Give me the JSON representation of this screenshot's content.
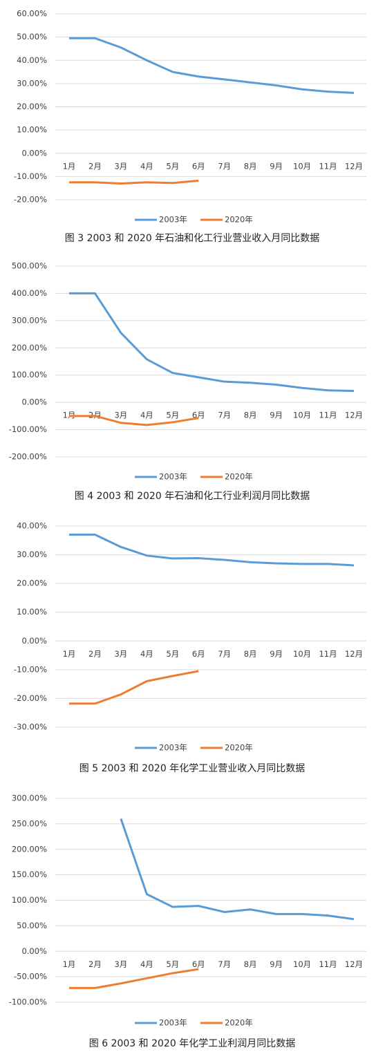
{
  "chart_data": [
    {
      "type": "line",
      "title": "图 3  2003 和 2020 年石油和化工行业营业收入月同比数据",
      "categories": [
        "1月",
        "2月",
        "3月",
        "4月",
        "5月",
        "6月",
        "7月",
        "8月",
        "9月",
        "10月",
        "11月",
        "12月"
      ],
      "series": [
        {
          "name": "2003年",
          "color": "#5b9bd5",
          "values": [
            49.5,
            49.5,
            45.5,
            40,
            35,
            33,
            31.8,
            30.5,
            29.2,
            27.5,
            26.5,
            26
          ]
        },
        {
          "name": "2020年",
          "color": "#ed7d31",
          "values": [
            -12.5,
            -12.5,
            -13,
            -12.5,
            -12.8,
            -11.8,
            null,
            null,
            null,
            null,
            null,
            null
          ]
        }
      ],
      "ylim": [
        -20,
        60
      ],
      "yticks": [
        {
          "value": -20,
          "label": "-20.00%"
        },
        {
          "value": -10,
          "label": "-10.00%"
        },
        {
          "value": 0,
          "label": "0.00%"
        },
        {
          "value": 10,
          "label": "10.00%"
        },
        {
          "value": 20,
          "label": "20.00%"
        },
        {
          "value": 30,
          "label": "30.00%"
        },
        {
          "value": 40,
          "label": "40.00%"
        },
        {
          "value": 50,
          "label": "50.00%"
        },
        {
          "value": 60,
          "label": "60.00%"
        }
      ],
      "grid": true,
      "legend": "bottom"
    },
    {
      "type": "line",
      "title": "图 4  2003 和 2020 年石油和化工行业利润月同比数据",
      "categories": [
        "1月",
        "2月",
        "3月",
        "4月",
        "5月",
        "6月",
        "7月",
        "8月",
        "9月",
        "10月",
        "11月",
        "12月"
      ],
      "series": [
        {
          "name": "2003年",
          "color": "#5b9bd5",
          "values": [
            400,
            400,
            255,
            158,
            108,
            92,
            76,
            72,
            65,
            53,
            44,
            42
          ]
        },
        {
          "name": "2020年",
          "color": "#ed7d31",
          "values": [
            -50,
            -50,
            -75,
            -83,
            -73,
            -57,
            null,
            null,
            null,
            null,
            null,
            null
          ]
        }
      ],
      "ylim": [
        -200,
        500
      ],
      "yticks": [
        {
          "value": -200,
          "label": "-200.00%"
        },
        {
          "value": -100,
          "label": "-100.00%"
        },
        {
          "value": 0,
          "label": "0.00%"
        },
        {
          "value": 100,
          "label": "100.00%"
        },
        {
          "value": 200,
          "label": "200.00%"
        },
        {
          "value": 300,
          "label": "300.00%"
        },
        {
          "value": 400,
          "label": "400.00%"
        },
        {
          "value": 500,
          "label": "500.00%"
        }
      ],
      "grid": true,
      "legend": "bottom"
    },
    {
      "type": "line",
      "title": "图 5  2003 和 2020 年化学工业营业收入月同比数据",
      "categories": [
        "1月",
        "2月",
        "3月",
        "4月",
        "5月",
        "6月",
        "7月",
        "8月",
        "9月",
        "10月",
        "11月",
        "12月"
      ],
      "series": [
        {
          "name": "2003年",
          "color": "#5b9bd5",
          "values": [
            37,
            37,
            32.7,
            29.7,
            28.7,
            28.8,
            28.2,
            27.4,
            27,
            26.8,
            26.8,
            26.3
          ]
        },
        {
          "name": "2020年",
          "color": "#ed7d31",
          "values": [
            -21.8,
            -21.8,
            -18.6,
            -14,
            -12.2,
            -10.5,
            null,
            null,
            null,
            null,
            null,
            null
          ]
        }
      ],
      "ylim": [
        -30,
        40
      ],
      "yticks": [
        {
          "value": -30,
          "label": "-30.00%"
        },
        {
          "value": -20,
          "label": "-20.00%"
        },
        {
          "value": -10,
          "label": "-10.00%"
        },
        {
          "value": 0,
          "label": "0.00%"
        },
        {
          "value": 10,
          "label": "10.00%"
        },
        {
          "value": 20,
          "label": "20.00%"
        },
        {
          "value": 30,
          "label": "30.00%"
        },
        {
          "value": 40,
          "label": "40.00%"
        }
      ],
      "grid": true,
      "legend": "bottom"
    },
    {
      "type": "line",
      "title": "图 6  2003 和 2020 年化学工业利润月同比数据",
      "categories": [
        "1月",
        "2月",
        "3月",
        "4月",
        "5月",
        "6月",
        "7月",
        "8月",
        "9月",
        "10月",
        "11月",
        "12月"
      ],
      "series": [
        {
          "name": "2003年",
          "color": "#5b9bd5",
          "values": [
            null,
            null,
            260,
            112,
            87,
            89,
            77,
            82,
            73,
            73,
            70,
            63
          ]
        },
        {
          "name": "2020年",
          "color": "#ed7d31",
          "values": [
            -72,
            -72,
            -63,
            -53,
            -43,
            -35,
            null,
            null,
            null,
            null,
            null,
            null
          ]
        }
      ],
      "ylim": [
        -100,
        300
      ],
      "yticks": [
        {
          "value": -100,
          "label": "-100.00%"
        },
        {
          "value": -50,
          "label": "-50.00%"
        },
        {
          "value": 0,
          "label": "0.00%"
        },
        {
          "value": 50,
          "label": "50.00%"
        },
        {
          "value": 100,
          "label": "100.00%"
        },
        {
          "value": 150,
          "label": "150.00%"
        },
        {
          "value": 200,
          "label": "200.00%"
        },
        {
          "value": 250,
          "label": "250.00%"
        },
        {
          "value": 300,
          "label": "300.00%"
        }
      ],
      "grid": true,
      "legend": "bottom"
    }
  ]
}
